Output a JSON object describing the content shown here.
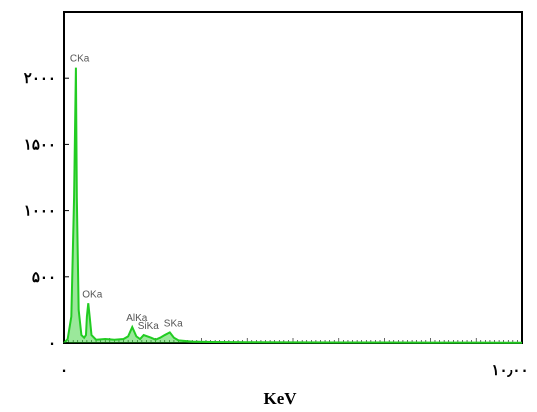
{
  "chart_data": {
    "type": "line",
    "title": "",
    "xlabel": "KeV",
    "ylabel": "",
    "xlim": [
      0,
      10
    ],
    "ylim": [
      0,
      2500
    ],
    "y_ticks": [
      {
        "value": 0,
        "label": "۰"
      },
      {
        "value": 500,
        "label": "۵۰۰"
      },
      {
        "value": 1000,
        "label": "۱۰۰۰"
      },
      {
        "value": 1500,
        "label": "۱۵۰۰"
      },
      {
        "value": 2000,
        "label": "۲۰۰۰"
      }
    ],
    "x_ticks": [
      {
        "value": 0,
        "label": "۰"
      },
      {
        "value": 10,
        "label": "۱۰٫۰۰"
      }
    ],
    "grid": false,
    "series": [
      {
        "color": "#22cc22",
        "x": [
          0.0,
          0.08,
          0.16,
          0.22,
          0.26,
          0.28,
          0.32,
          0.38,
          0.44,
          0.48,
          0.5,
          0.53,
          0.56,
          0.6,
          0.7,
          0.9,
          1.1,
          1.3,
          1.4,
          1.49,
          1.58,
          1.66,
          1.74,
          1.9,
          2.0,
          2.1,
          2.2,
          2.31,
          2.4,
          2.5,
          2.8,
          3.2,
          4.0,
          5.0,
          6.0,
          7.0,
          8.0,
          9.0,
          10.0
        ],
        "y": [
          0,
          30,
          200,
          1100,
          2080,
          1100,
          250,
          60,
          40,
          60,
          200,
          300,
          200,
          60,
          25,
          30,
          25,
          30,
          50,
          120,
          50,
          30,
          60,
          40,
          25,
          40,
          60,
          80,
          40,
          20,
          10,
          8,
          6,
          5,
          4,
          4,
          3,
          3,
          2
        ]
      }
    ],
    "annotations": [
      {
        "text": "CKa",
        "x": 0.26,
        "y": 2080
      },
      {
        "text": "OKa",
        "x": 0.53,
        "y": 300
      },
      {
        "text": "AlKa",
        "x": 1.49,
        "y": 120
      },
      {
        "text": "SiKa",
        "x": 1.74,
        "y": 60
      },
      {
        "text": "SKa",
        "x": 2.31,
        "y": 80
      }
    ]
  }
}
